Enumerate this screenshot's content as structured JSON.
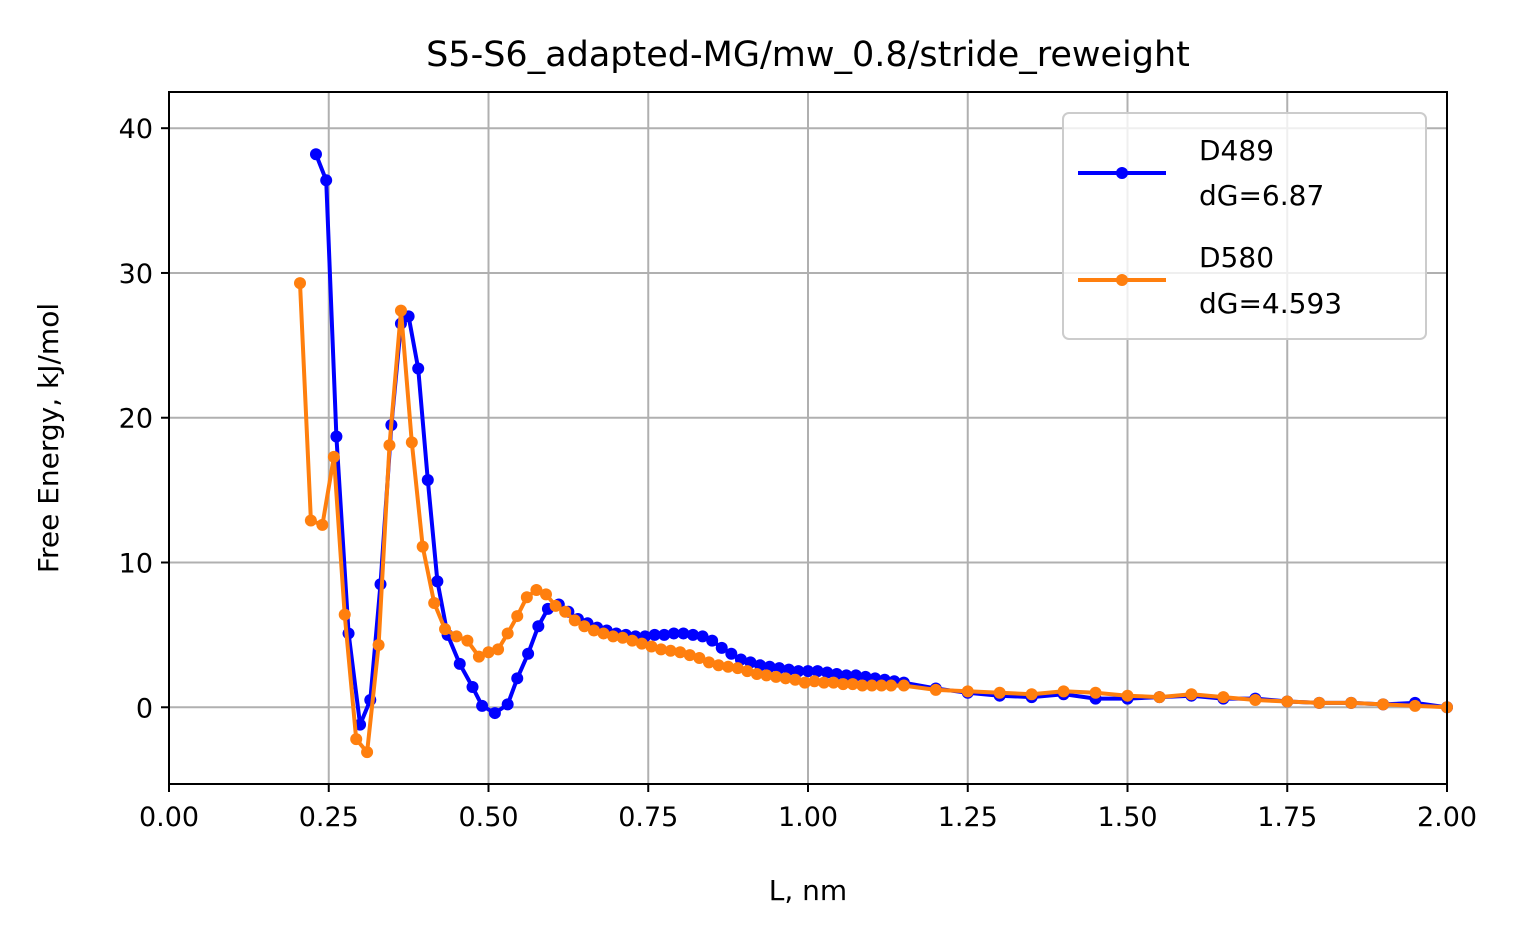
{
  "chart_data": {
    "type": "line",
    "title": "S5-S6_adapted-MG/mw_0.8/stride_reweight",
    "xlabel": "L, nm",
    "ylabel": "Free Energy, kJ/mol",
    "xlim": [
      0,
      2.0
    ],
    "ylim": [
      -5.3,
      42.5
    ],
    "xticks": [
      "0.00",
      "0.25",
      "0.50",
      "0.75",
      "1.00",
      "1.25",
      "1.50",
      "1.75",
      "2.00"
    ],
    "yticks": [
      "0",
      "10",
      "20",
      "30",
      "40"
    ],
    "grid": true,
    "legend_position": "top-right",
    "series": [
      {
        "name": "D489",
        "label_line2": "dG=6.87",
        "color": "#0000ff",
        "x": [
          0.23,
          0.246,
          0.262,
          0.281,
          0.299,
          0.315,
          0.331,
          0.348,
          0.363,
          0.375,
          0.39,
          0.405,
          0.42,
          0.436,
          0.455,
          0.475,
          0.49,
          0.51,
          0.53,
          0.545,
          0.562,
          0.578,
          0.593,
          0.61,
          0.625,
          0.64,
          0.655,
          0.67,
          0.685,
          0.7,
          0.715,
          0.73,
          0.745,
          0.76,
          0.775,
          0.79,
          0.805,
          0.82,
          0.835,
          0.85,
          0.865,
          0.88,
          0.895,
          0.91,
          0.925,
          0.94,
          0.955,
          0.97,
          0.985,
          1.0,
          1.015,
          1.03,
          1.045,
          1.06,
          1.075,
          1.09,
          1.105,
          1.12,
          1.135,
          1.15,
          1.2,
          1.25,
          1.3,
          1.35,
          1.4,
          1.45,
          1.5,
          1.55,
          1.6,
          1.65,
          1.7,
          1.75,
          1.8,
          1.85,
          1.9,
          1.95,
          2.0
        ],
        "y": [
          38.2,
          36.4,
          18.7,
          5.1,
          -1.2,
          0.5,
          8.5,
          19.5,
          26.5,
          27.0,
          23.4,
          15.7,
          8.7,
          5.0,
          3.0,
          1.4,
          0.1,
          -0.4,
          0.2,
          2.0,
          3.7,
          5.6,
          6.8,
          7.1,
          6.6,
          6.1,
          5.8,
          5.5,
          5.3,
          5.1,
          5.0,
          4.9,
          4.9,
          5.0,
          5.0,
          5.1,
          5.1,
          5.0,
          4.9,
          4.6,
          4.1,
          3.7,
          3.3,
          3.1,
          2.9,
          2.8,
          2.7,
          2.6,
          2.5,
          2.5,
          2.5,
          2.4,
          2.3,
          2.2,
          2.2,
          2.1,
          2.0,
          1.9,
          1.8,
          1.7,
          1.3,
          1.0,
          0.8,
          0.7,
          0.9,
          0.6,
          0.6,
          0.7,
          0.8,
          0.6,
          0.6,
          0.4,
          0.3,
          0.3,
          0.2,
          0.3,
          0.0
        ]
      },
      {
        "name": "D580",
        "label_line2": "dG=4.593",
        "color": "#ff7f0e",
        "x": [
          0.205,
          0.222,
          0.24,
          0.258,
          0.275,
          0.293,
          0.31,
          0.328,
          0.345,
          0.363,
          0.38,
          0.397,
          0.415,
          0.432,
          0.45,
          0.467,
          0.485,
          0.5,
          0.515,
          0.53,
          0.545,
          0.56,
          0.575,
          0.59,
          0.605,
          0.62,
          0.635,
          0.65,
          0.665,
          0.68,
          0.695,
          0.71,
          0.725,
          0.74,
          0.755,
          0.77,
          0.785,
          0.8,
          0.815,
          0.83,
          0.845,
          0.86,
          0.875,
          0.89,
          0.905,
          0.92,
          0.935,
          0.95,
          0.965,
          0.98,
          0.995,
          1.01,
          1.025,
          1.04,
          1.055,
          1.07,
          1.085,
          1.1,
          1.115,
          1.13,
          1.15,
          1.2,
          1.25,
          1.3,
          1.35,
          1.4,
          1.45,
          1.5,
          1.55,
          1.6,
          1.65,
          1.7,
          1.75,
          1.8,
          1.85,
          1.9,
          1.95,
          2.0
        ],
        "y": [
          29.3,
          12.9,
          12.6,
          17.3,
          6.4,
          -2.2,
          -3.1,
          4.3,
          18.1,
          27.4,
          18.3,
          11.1,
          7.2,
          5.4,
          4.9,
          4.6,
          3.5,
          3.8,
          4.0,
          5.1,
          6.3,
          7.6,
          8.1,
          7.8,
          7.0,
          6.6,
          6.0,
          5.6,
          5.3,
          5.1,
          4.9,
          4.8,
          4.6,
          4.4,
          4.2,
          4.0,
          3.9,
          3.8,
          3.6,
          3.4,
          3.1,
          2.9,
          2.8,
          2.7,
          2.5,
          2.3,
          2.2,
          2.1,
          2.0,
          1.9,
          1.7,
          1.8,
          1.7,
          1.7,
          1.6,
          1.6,
          1.5,
          1.5,
          1.5,
          1.5,
          1.5,
          1.2,
          1.1,
          1.0,
          0.9,
          1.1,
          1.0,
          0.8,
          0.7,
          0.9,
          0.7,
          0.5,
          0.4,
          0.3,
          0.3,
          0.2,
          0.1,
          0.0
        ]
      }
    ]
  }
}
